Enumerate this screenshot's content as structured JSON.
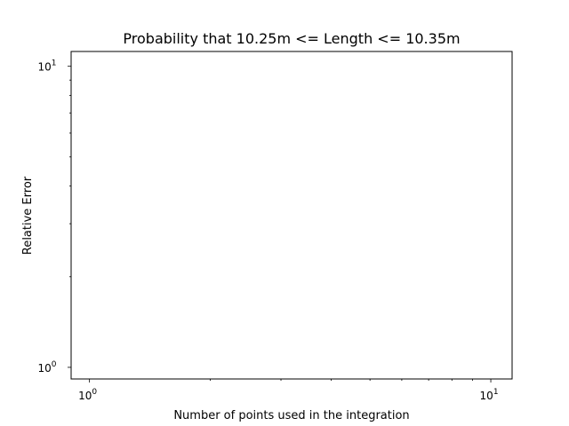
{
  "chart_data": {
    "type": "line",
    "title": "Probability that 10.25m <= Length <= 10.35m",
    "xlabel": "Number of points used in the integration",
    "ylabel": "Relative Error",
    "xscale": "log",
    "yscale": "log",
    "xlim": [
      0.9,
      11.3
    ],
    "ylim": [
      0.915,
      11.2
    ],
    "xticks": [
      {
        "value": 1,
        "label": "10",
        "exp": "0"
      },
      {
        "value": 10,
        "label": "10",
        "exp": "1"
      }
    ],
    "yticks": [
      {
        "value": 1,
        "label": "10",
        "exp": "0"
      },
      {
        "value": 10,
        "label": "10",
        "exp": "1"
      }
    ],
    "series": [],
    "grid": false,
    "legend": "none",
    "colors": {
      "axes": "#000000",
      "background": "#ffffff"
    }
  }
}
